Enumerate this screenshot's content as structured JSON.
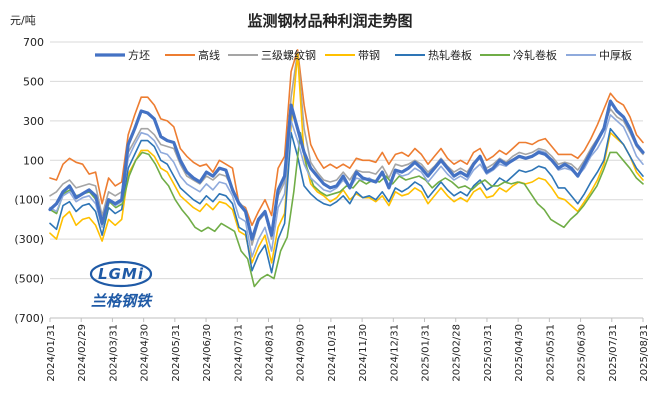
{
  "chart_data": {
    "type": "line",
    "title": "监测钢材品种利润走势图",
    "ylabel": "元/吨",
    "xlabel": "",
    "ylim": [
      -700,
      700
    ],
    "yticks": [
      700,
      500,
      300,
      100,
      -100,
      -300,
      -500,
      -700
    ],
    "ytick_labels": [
      "700",
      "500",
      "300",
      "100",
      "(100)",
      "(300)",
      "(500)",
      "(700)"
    ],
    "grid": "horizontal",
    "legend_position": "top-right",
    "x_tick_labels": [
      "2024/01/31",
      "2024/02/29",
      "2024/03/31",
      "2024/04/30",
      "2024/05/31",
      "2024/06/30",
      "2024/07/31",
      "2024/08/31",
      "2024/09/30",
      "2024/10/31",
      "2024/11/30",
      "2024/12/31",
      "2025/01/31",
      "2025/02/28",
      "2025/03/31",
      "2025/04/30",
      "2025/05/31",
      "2025/06/30",
      "2025/07/31",
      "2025/08/31"
    ],
    "series": [
      {
        "name": "方坯",
        "color": "#4472c4",
        "width": 3.2,
        "values": [
          -150,
          -120,
          -60,
          -30,
          -90,
          -70,
          -50,
          -80,
          -220,
          -100,
          -120,
          -100,
          180,
          260,
          350,
          340,
          310,
          220,
          200,
          190,
          100,
          40,
          10,
          -10,
          40,
          20,
          60,
          50,
          -50,
          -120,
          -160,
          -300,
          -200,
          -160,
          -280,
          -50,
          20,
          380,
          260,
          140,
          60,
          20,
          -20,
          -40,
          -30,
          20,
          -40,
          40,
          10,
          0,
          -10,
          40,
          -40,
          50,
          40,
          60,
          90,
          60,
          20,
          60,
          100,
          60,
          20,
          40,
          20,
          80,
          120,
          40,
          60,
          100,
          80,
          100,
          120,
          110,
          120,
          140,
          130,
          100,
          60,
          80,
          60,
          20,
          80,
          140,
          200,
          260,
          400,
          350,
          320,
          260,
          180,
          140
        ]
      },
      {
        "name": "高线",
        "color": "#ed7d31",
        "width": 1.6,
        "values": [
          10,
          0,
          80,
          110,
          90,
          80,
          30,
          40,
          -120,
          10,
          -30,
          -10,
          230,
          330,
          420,
          420,
          380,
          310,
          300,
          270,
          160,
          120,
          90,
          70,
          80,
          40,
          100,
          80,
          60,
          -120,
          -140,
          -230,
          -160,
          -100,
          -180,
          60,
          120,
          550,
          660,
          380,
          180,
          110,
          60,
          80,
          60,
          80,
          60,
          110,
          100,
          100,
          90,
          140,
          80,
          130,
          140,
          120,
          160,
          130,
          80,
          120,
          160,
          110,
          80,
          100,
          80,
          140,
          160,
          100,
          120,
          150,
          130,
          160,
          190,
          190,
          180,
          200,
          210,
          170,
          130,
          130,
          130,
          110,
          150,
          210,
          280,
          360,
          440,
          400,
          380,
          320,
          230,
          190
        ]
      },
      {
        "name": "三级螺纹钢",
        "color": "#a5a5a5",
        "width": 1.6,
        "values": [
          -80,
          -60,
          -20,
          0,
          -40,
          -30,
          -20,
          -30,
          -180,
          -60,
          -80,
          -60,
          140,
          200,
          260,
          260,
          230,
          180,
          170,
          160,
          80,
          20,
          0,
          -20,
          20,
          0,
          30,
          20,
          -40,
          -110,
          -150,
          -330,
          -210,
          -170,
          -300,
          -80,
          -10,
          420,
          650,
          260,
          90,
          40,
          0,
          -10,
          0,
          40,
          0,
          50,
          40,
          40,
          30,
          70,
          10,
          80,
          70,
          80,
          100,
          80,
          40,
          70,
          110,
          70,
          40,
          60,
          40,
          90,
          110,
          60,
          80,
          110,
          90,
          120,
          140,
          130,
          140,
          160,
          150,
          120,
          80,
          90,
          80,
          50,
          100,
          160,
          210,
          270,
          360,
          320,
          300,
          240,
          170,
          130
        ]
      },
      {
        "name": "带钢",
        "color": "#ffc000",
        "width": 1.6,
        "values": [
          -270,
          -300,
          -190,
          -160,
          -230,
          -200,
          -190,
          -230,
          -310,
          -200,
          -230,
          -200,
          30,
          90,
          150,
          150,
          120,
          60,
          40,
          -20,
          -80,
          -110,
          -140,
          -160,
          -120,
          -150,
          -110,
          -120,
          -150,
          -260,
          -280,
          -420,
          -340,
          -280,
          -420,
          -240,
          -170,
          270,
          640,
          120,
          -20,
          -60,
          -80,
          -110,
          -90,
          -50,
          -100,
          -70,
          -90,
          -90,
          -110,
          -80,
          -130,
          -60,
          -80,
          -70,
          -40,
          -60,
          -120,
          -80,
          -40,
          -80,
          -110,
          -90,
          -110,
          -60,
          -40,
          -90,
          -80,
          -40,
          -60,
          -30,
          -10,
          -20,
          -10,
          10,
          0,
          -40,
          -90,
          -100,
          -130,
          -160,
          -110,
          -60,
          0,
          80,
          240,
          210,
          180,
          120,
          40,
          0
        ]
      },
      {
        "name": "热轧卷板",
        "color": "#2e75b6",
        "width": 1.6,
        "values": [
          -220,
          -250,
          -130,
          -110,
          -160,
          -130,
          -120,
          -160,
          -280,
          -140,
          -170,
          -150,
          60,
          130,
          200,
          200,
          170,
          100,
          80,
          20,
          -40,
          -70,
          -100,
          -120,
          -80,
          -110,
          -70,
          -80,
          -120,
          -240,
          -260,
          -460,
          -380,
          -330,
          -470,
          -300,
          -220,
          240,
          120,
          -30,
          -70,
          -100,
          -120,
          -130,
          -110,
          -80,
          -120,
          -60,
          -90,
          -80,
          -100,
          -60,
          -110,
          -40,
          -60,
          -40,
          -10,
          -30,
          -90,
          -50,
          -10,
          -50,
          -80,
          -60,
          -80,
          -30,
          0,
          -50,
          -30,
          10,
          -10,
          20,
          50,
          40,
          50,
          70,
          60,
          20,
          -40,
          -40,
          -80,
          -120,
          -70,
          -10,
          40,
          100,
          260,
          220,
          180,
          120,
          60,
          20
        ]
      },
      {
        "name": "冷轧卷板",
        "color": "#70ad47",
        "width": 1.6,
        "values": [
          -150,
          -170,
          -70,
          -50,
          -80,
          -70,
          -60,
          -100,
          -230,
          -110,
          -140,
          -120,
          20,
          100,
          140,
          130,
          80,
          10,
          -30,
          -100,
          -150,
          -190,
          -240,
          -260,
          -240,
          -260,
          -220,
          -240,
          -260,
          -360,
          -400,
          -540,
          -500,
          -480,
          -500,
          -360,
          -290,
          -60,
          240,
          60,
          -30,
          -60,
          -80,
          -70,
          -60,
          -30,
          -40,
          0,
          -20,
          0,
          -10,
          20,
          -20,
          20,
          0,
          10,
          20,
          0,
          -40,
          -10,
          10,
          -10,
          -40,
          -30,
          -50,
          -20,
          0,
          -30,
          -30,
          -10,
          -20,
          -10,
          -20,
          -70,
          -120,
          -150,
          -200,
          -220,
          -240,
          -200,
          -170,
          -130,
          -80,
          -30,
          50,
          140,
          140,
          100,
          60,
          10,
          -20
        ]
      },
      {
        "name": "中厚板",
        "color": "#8faadc",
        "width": 1.6,
        "values": [
          -140,
          -160,
          -80,
          -60,
          -110,
          -90,
          -80,
          -120,
          -240,
          -100,
          -130,
          -110,
          110,
          180,
          240,
          230,
          200,
          140,
          130,
          90,
          20,
          -20,
          -40,
          -60,
          -20,
          -50,
          -10,
          -20,
          -80,
          -190,
          -210,
          -390,
          -300,
          -240,
          -360,
          -140,
          -70,
          300,
          200,
          80,
          10,
          -20,
          -50,
          -60,
          -40,
          0,
          -40,
          10,
          0,
          10,
          -10,
          30,
          -30,
          40,
          20,
          30,
          60,
          40,
          -10,
          30,
          70,
          30,
          0,
          20,
          0,
          50,
          80,
          30,
          50,
          80,
          70,
          100,
          120,
          110,
          120,
          150,
          140,
          100,
          50,
          60,
          50,
          20,
          60,
          120,
          160,
          220,
          330,
          300,
          270,
          200,
          120,
          80
        ]
      }
    ],
    "logo": {
      "badge": "LGMi",
      "name": "兰格钢铁"
    }
  }
}
